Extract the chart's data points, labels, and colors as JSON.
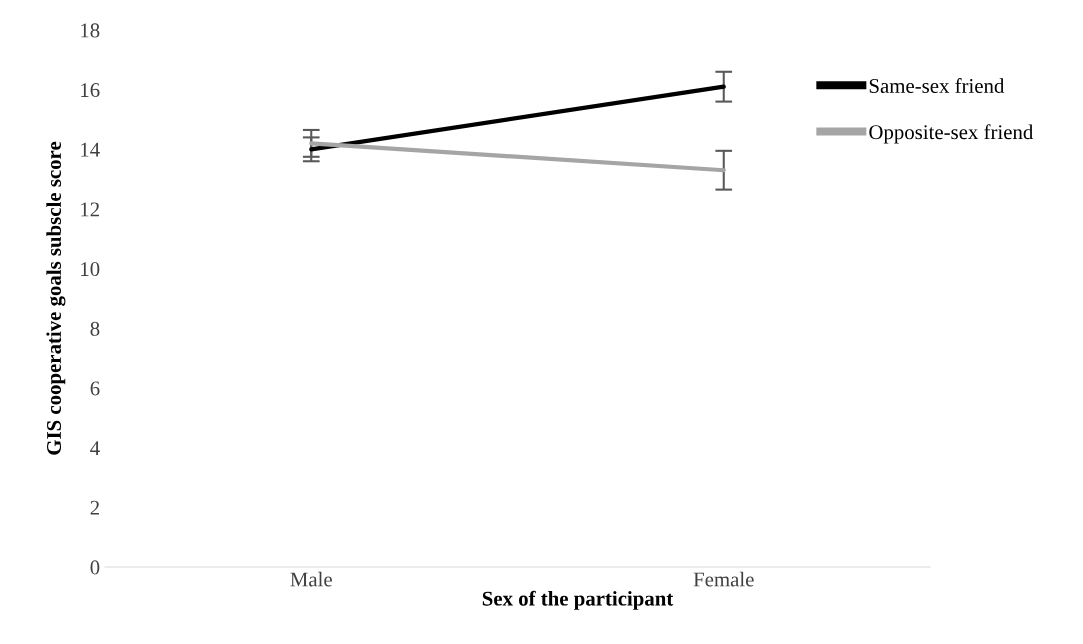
{
  "chart_data": {
    "type": "line",
    "xlabel": "Sex of the participant",
    "ylabel": "GIS cooperative goals subscle score",
    "categories": [
      "Male",
      "Female"
    ],
    "series": [
      {
        "name": "Same-sex friend",
        "color": "#000000",
        "values": [
          14.0,
          16.1
        ],
        "errors": [
          0.4,
          0.5
        ]
      },
      {
        "name": "Opposite-sex friend",
        "color": "#a5a5a5",
        "values": [
          14.2,
          13.3
        ],
        "errors": [
          0.45,
          0.65
        ]
      }
    ],
    "ylim": [
      0,
      18
    ],
    "yticks": [
      0,
      2,
      4,
      6,
      8,
      10,
      12,
      14,
      16,
      18
    ],
    "grid": false,
    "legend": "right",
    "marker": "none",
    "line_style": "solid"
  }
}
